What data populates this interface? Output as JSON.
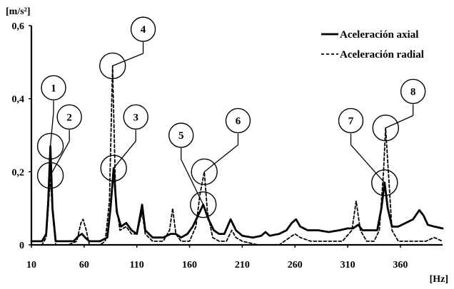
{
  "chart_data": {
    "type": "line",
    "title": "",
    "xlabel": "[Hz]",
    "ylabel": "[m/s²]",
    "xlim": [
      10,
      400
    ],
    "ylim": [
      0,
      0.6
    ],
    "x_ticks": [
      10,
      60,
      110,
      160,
      210,
      260,
      310,
      360
    ],
    "y_ticks": [
      0,
      0.2,
      0.4,
      0.6
    ],
    "y_tick_labels": [
      "0",
      "0,2",
      "0,4",
      "0,6"
    ],
    "grid": false,
    "legend_position": "top-right",
    "series": [
      {
        "name": "Aceleración axial",
        "style": "solid",
        "color": "#000000",
        "points": [
          [
            10,
            0.01
          ],
          [
            15,
            0.01
          ],
          [
            20,
            0.01
          ],
          [
            24,
            0.03
          ],
          [
            26,
            0.12
          ],
          [
            28,
            0.27
          ],
          [
            30,
            0.1
          ],
          [
            33,
            0.01
          ],
          [
            40,
            0.01
          ],
          [
            50,
            0.01
          ],
          [
            55,
            0.025
          ],
          [
            58,
            0.03
          ],
          [
            61,
            0.02
          ],
          [
            65,
            0.01
          ],
          [
            75,
            0.01
          ],
          [
            82,
            0.02
          ],
          [
            85,
            0.1
          ],
          [
            88,
            0.21
          ],
          [
            91,
            0.09
          ],
          [
            95,
            0.05
          ],
          [
            100,
            0.06
          ],
          [
            105,
            0.04
          ],
          [
            110,
            0.03
          ],
          [
            115,
            0.11
          ],
          [
            118,
            0.04
          ],
          [
            125,
            0.02
          ],
          [
            135,
            0.02
          ],
          [
            142,
            0.03
          ],
          [
            147,
            0.03
          ],
          [
            152,
            0.02
          ],
          [
            158,
            0.03
          ],
          [
            163,
            0.05
          ],
          [
            168,
            0.08
          ],
          [
            173,
            0.11
          ],
          [
            178,
            0.07
          ],
          [
            183,
            0.04
          ],
          [
            188,
            0.03
          ],
          [
            193,
            0.03
          ],
          [
            199,
            0.07
          ],
          [
            204,
            0.04
          ],
          [
            210,
            0.025
          ],
          [
            220,
            0.02
          ],
          [
            228,
            0.025
          ],
          [
            232,
            0.035
          ],
          [
            236,
            0.025
          ],
          [
            245,
            0.03
          ],
          [
            252,
            0.04
          ],
          [
            257,
            0.06
          ],
          [
            261,
            0.07
          ],
          [
            265,
            0.05
          ],
          [
            272,
            0.04
          ],
          [
            282,
            0.04
          ],
          [
            292,
            0.035
          ],
          [
            302,
            0.04
          ],
          [
            310,
            0.045
          ],
          [
            315,
            0.045
          ],
          [
            320,
            0.055
          ],
          [
            324,
            0.04
          ],
          [
            330,
            0.04
          ],
          [
            338,
            0.04
          ],
          [
            342,
            0.1
          ],
          [
            345,
            0.17
          ],
          [
            348,
            0.1
          ],
          [
            352,
            0.05
          ],
          [
            358,
            0.05
          ],
          [
            365,
            0.06
          ],
          [
            372,
            0.07
          ],
          [
            378,
            0.095
          ],
          [
            382,
            0.08
          ],
          [
            386,
            0.055
          ],
          [
            392,
            0.05
          ],
          [
            400,
            0.045
          ]
        ]
      },
      {
        "name": "Aceleración radial",
        "style": "dashed",
        "color": "#000000",
        "points": [
          [
            10,
            0.0
          ],
          [
            20,
            0.0
          ],
          [
            24,
            0.02
          ],
          [
            26,
            0.1
          ],
          [
            28,
            0.19
          ],
          [
            30,
            0.09
          ],
          [
            33,
            0.0
          ],
          [
            45,
            0.0
          ],
          [
            53,
            0.01
          ],
          [
            57,
            0.06
          ],
          [
            59,
            0.07
          ],
          [
            62,
            0.04
          ],
          [
            65,
            0.0
          ],
          [
            75,
            0.0
          ],
          [
            80,
            0.01
          ],
          [
            84,
            0.12
          ],
          [
            87,
            0.49
          ],
          [
            90,
            0.12
          ],
          [
            94,
            0.04
          ],
          [
            100,
            0.05
          ],
          [
            105,
            0.03
          ],
          [
            110,
            0.03
          ],
          [
            115,
            0.09
          ],
          [
            118,
            0.03
          ],
          [
            125,
            0.01
          ],
          [
            135,
            0.01
          ],
          [
            141,
            0.04
          ],
          [
            144,
            0.1
          ],
          [
            147,
            0.03
          ],
          [
            152,
            0.01
          ],
          [
            160,
            0.01
          ],
          [
            166,
            0.05
          ],
          [
            170,
            0.14
          ],
          [
            174,
            0.2
          ],
          [
            177,
            0.09
          ],
          [
            182,
            0.02
          ],
          [
            188,
            0.01
          ],
          [
            195,
            0.01
          ],
          [
            200,
            0.04
          ],
          [
            204,
            0.02
          ],
          [
            210,
            0.01
          ],
          [
            225,
            0.0
          ],
          [
            235,
            0.0
          ],
          [
            245,
            0.0
          ],
          [
            255,
            0.02
          ],
          [
            260,
            0.03
          ],
          [
            265,
            0.02
          ],
          [
            275,
            0.01
          ],
          [
            290,
            0.01
          ],
          [
            305,
            0.01
          ],
          [
            314,
            0.04
          ],
          [
            318,
            0.12
          ],
          [
            322,
            0.04
          ],
          [
            328,
            0.01
          ],
          [
            335,
            0.01
          ],
          [
            340,
            0.04
          ],
          [
            344,
            0.2
          ],
          [
            346,
            0.32
          ],
          [
            349,
            0.18
          ],
          [
            352,
            0.04
          ],
          [
            358,
            0.01
          ],
          [
            368,
            0.01
          ],
          [
            378,
            0.01
          ],
          [
            384,
            0.01
          ],
          [
            392,
            0.02
          ],
          [
            400,
            0.01
          ]
        ]
      }
    ],
    "annotations": [
      {
        "label": "1",
        "x": 28,
        "y": 0.27,
        "number_x": 31,
        "number_y": 0.43
      },
      {
        "label": "2",
        "x": 28,
        "y": 0.19,
        "number_x": 46,
        "number_y": 0.35
      },
      {
        "label": "3",
        "x": 88,
        "y": 0.21,
        "number_x": 109,
        "number_y": 0.35
      },
      {
        "label": "4",
        "x": 87,
        "y": 0.49,
        "number_x": 116,
        "number_y": 0.59
      },
      {
        "label": "5",
        "x": 173,
        "y": 0.11,
        "number_x": 152,
        "number_y": 0.3
      },
      {
        "label": "6",
        "x": 174,
        "y": 0.2,
        "number_x": 206,
        "number_y": 0.34
      },
      {
        "label": "7",
        "x": 345,
        "y": 0.17,
        "number_x": 313,
        "number_y": 0.34
      },
      {
        "label": "8",
        "x": 346,
        "y": 0.32,
        "number_x": 372,
        "number_y": 0.42
      }
    ]
  }
}
